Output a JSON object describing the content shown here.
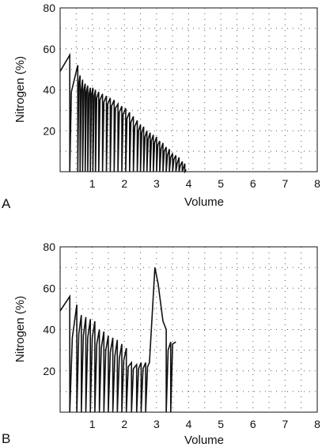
{
  "chart_data": [
    {
      "type": "line",
      "panel_label": "A",
      "xlabel": "Volume",
      "ylabel": "Nitrogen (%)",
      "xlim": [
        0,
        8
      ],
      "ylim": [
        0,
        80
      ],
      "x_ticks": [
        1,
        2,
        3,
        4,
        5,
        6,
        7,
        8
      ],
      "y_ticks": [
        20,
        40,
        60,
        80
      ],
      "grid": "dotted",
      "series": [
        {
          "x": [
            0.0,
            0.3,
            0.3,
            0.35,
            0.55,
            0.55,
            0.58,
            0.62,
            0.62,
            0.66,
            0.7,
            0.7,
            0.74,
            0.78,
            0.78,
            0.82,
            0.86,
            0.86,
            0.9,
            0.94,
            0.94,
            0.98,
            1.02,
            1.02,
            1.06,
            1.1,
            1.1,
            1.14,
            1.2,
            1.2,
            1.24,
            1.32,
            1.32,
            1.36,
            1.44,
            1.44,
            1.48,
            1.56,
            1.56,
            1.6,
            1.68,
            1.68,
            1.72,
            1.8,
            1.8,
            1.84,
            1.92,
            1.92,
            1.96,
            2.04,
            2.04,
            2.08,
            2.16,
            2.16,
            2.2,
            2.28,
            2.28,
            2.32,
            2.4,
            2.4,
            2.44,
            2.5,
            2.5,
            2.54,
            2.6,
            2.6,
            2.64,
            2.7,
            2.7,
            2.74,
            2.8,
            2.8,
            2.84,
            2.9,
            2.9,
            2.94,
            3.0,
            3.0,
            3.04,
            3.1,
            3.1,
            3.14,
            3.2,
            3.2,
            3.24,
            3.3,
            3.3,
            3.34,
            3.4,
            3.4,
            3.44,
            3.5,
            3.5,
            3.54,
            3.6,
            3.6,
            3.64,
            3.7,
            3.7,
            3.74,
            3.8,
            3.8,
            3.84,
            3.88,
            3.88,
            3.92
          ],
          "y": [
            49,
            57,
            0,
            39,
            52,
            0,
            43,
            47,
            0,
            40,
            45,
            0,
            40,
            43,
            0,
            39,
            42,
            0,
            38,
            41,
            0,
            38,
            41,
            0,
            37,
            40,
            0,
            36,
            39,
            0,
            35,
            38,
            0,
            34,
            37,
            0,
            33,
            36,
            0,
            32,
            35,
            0,
            31,
            33,
            0,
            29,
            32,
            0,
            28,
            31,
            0,
            26,
            29,
            0,
            24,
            27,
            0,
            22,
            25,
            0,
            20,
            23,
            0,
            19,
            22,
            0,
            17,
            20,
            0,
            16,
            19,
            0,
            15,
            18,
            0,
            14,
            17,
            0,
            13,
            15,
            0,
            11,
            14,
            0,
            10,
            12,
            0,
            8,
            11,
            0,
            7,
            9,
            0,
            6,
            8,
            0,
            4,
            7,
            0,
            3,
            5,
            0,
            2,
            4,
            0,
            1
          ]
        }
      ]
    },
    {
      "type": "line",
      "panel_label": "B",
      "xlabel": "Volume",
      "ylabel": "Nitrogen (%)",
      "xlim": [
        0,
        8
      ],
      "ylim": [
        0,
        80
      ],
      "x_ticks": [
        1,
        2,
        3,
        4,
        5,
        6,
        7,
        8
      ],
      "y_ticks": [
        20,
        40,
        60,
        80
      ],
      "grid": "dotted",
      "series": [
        {
          "x": [
            0.0,
            0.3,
            0.3,
            0.38,
            0.52,
            0.52,
            0.58,
            0.66,
            0.66,
            0.72,
            0.8,
            0.8,
            0.86,
            0.94,
            0.94,
            1.0,
            1.08,
            1.08,
            1.14,
            1.22,
            1.22,
            1.28,
            1.36,
            1.36,
            1.42,
            1.5,
            1.5,
            1.56,
            1.64,
            1.64,
            1.7,
            1.78,
            1.78,
            1.84,
            1.92,
            1.92,
            1.98,
            2.06,
            2.06,
            2.12,
            2.22,
            2.22,
            2.28,
            2.38,
            2.38,
            2.44,
            2.52,
            2.52,
            2.58,
            2.66,
            2.66,
            2.72,
            2.78,
            2.95,
            3.05,
            3.2,
            3.3,
            3.3,
            3.36,
            3.44,
            3.44,
            3.5,
            3.6
          ],
          "y": [
            49,
            56,
            0,
            36,
            52,
            0,
            38,
            47,
            0,
            37,
            46,
            0,
            36,
            45,
            0,
            36,
            44,
            0,
            33,
            40,
            0,
            31,
            39,
            0,
            30,
            37,
            0,
            29,
            36,
            0,
            27,
            35,
            0,
            26,
            33,
            0,
            25,
            31,
            0,
            22,
            24,
            0,
            21,
            23,
            0,
            21,
            24,
            0,
            21,
            24,
            0,
            22,
            24,
            70,
            62,
            44,
            40,
            0,
            30,
            34,
            0,
            33,
            34
          ]
        }
      ]
    }
  ]
}
